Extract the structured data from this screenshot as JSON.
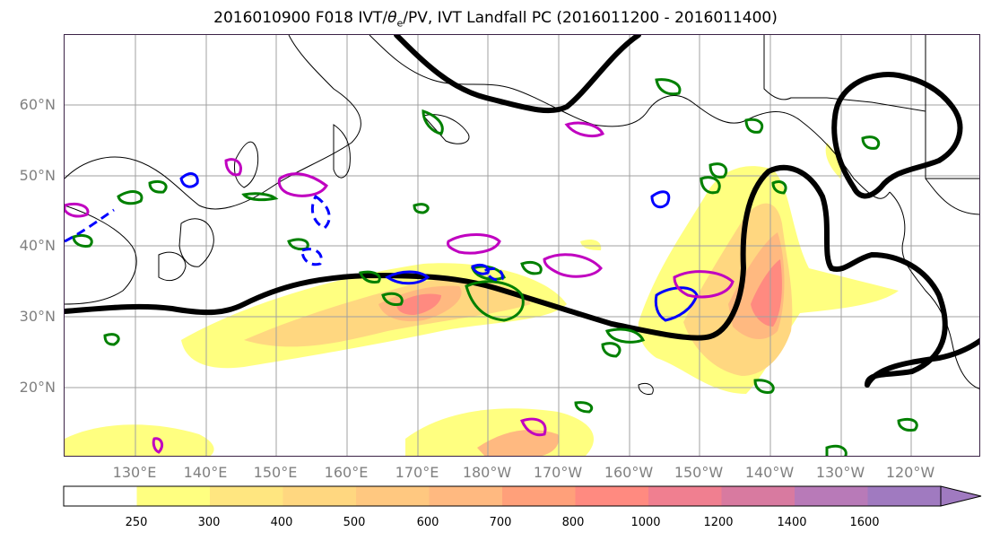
{
  "title": "2016010900 F018 IVT/θe/PV, IVT Landfall PC (2016011200 - 2016011400)",
  "title_parts": {
    "before": "2016010900 F018 IVT/",
    "theta": "θ",
    "sub": "e",
    "after": "/PV, IVT Landfall PC (2016011200 - 2016011400)"
  },
  "map": {
    "lat_labels": [
      "60°N",
      "50°N",
      "40°N",
      "30°N",
      "20°N"
    ],
    "lon_labels": [
      "130°E",
      "140°E",
      "150°E",
      "160°E",
      "170°E",
      "180°W",
      "170°W",
      "160°W",
      "150°W",
      "140°W",
      "130°W",
      "120°W"
    ],
    "colors": {
      "coast": "#000000",
      "ridge_contour": "#000000",
      "pv_green": "#008000",
      "pv_blue": "#0000ff",
      "pv_magenta": "#c000c0",
      "grid": "#a0a0a0"
    }
  },
  "colorbar": {
    "labels": [
      "250",
      "300",
      "400",
      "500",
      "600",
      "700",
      "800",
      "1000",
      "1200",
      "1400",
      "1600"
    ],
    "colors": [
      "#ffffff",
      "#ffff80",
      "#ffe680",
      "#ffd780",
      "#ffc880",
      "#ffb980",
      "#ffa07a",
      "#ff8a80",
      "#f07f90",
      "#d87aa0",
      "#b87ab8",
      "#a07ac0"
    ],
    "extend": "max"
  }
}
